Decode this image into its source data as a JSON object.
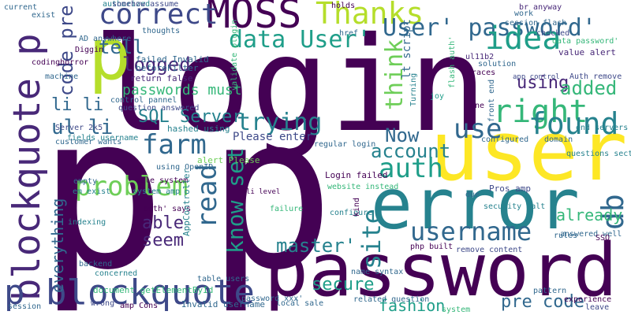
{
  "words": [
    "login",
    "p",
    "p",
    "password",
    "error",
    "user",
    "p",
    "blockquote p",
    "p blockquote",
    "MOSS",
    "Thanks",
    "correct",
    "data User'",
    "User' password'",
    "idea",
    "think",
    "right",
    "using",
    "added",
    "found",
    "farm",
    "use",
    "tell",
    "logged",
    "code pre",
    "li li",
    "ul li",
    "problem",
    "able",
    "seem",
    "read",
    "know set",
    "trying",
    "SQL Server",
    "auth",
    "db",
    "username",
    "already",
    "Now",
    "account",
    "site",
    "master'",
    "secure",
    "fashion",
    "pre code",
    "passwords must",
    "everything",
    "Please enter",
    "regular login",
    "Login failed",
    "Auth remove",
    "value alert",
    "app control",
    "return false",
    "failed Invalid",
    "beforeFilter",
    "control pannel",
    "question answered",
    "customer wants",
    "Server 2k5",
    "fields username",
    "hashed using",
    "using OpenID",
    "alert Please",
    "sale system",
    "system amp",
    "auth' says",
    "AppController",
    "li level",
    "failure",
    "website instead",
    "configure",
    "Pros amp",
    "security salt",
    "answered well",
    "remove content",
    "php built",
    "related question",
    "table users",
    "document getElementById",
    "Invalid username",
    "amp Cons",
    "local sale",
    "session",
    "wrong",
    "concerned",
    "backend",
    "indexing",
    "em exist",
    "empty",
    "machine",
    "codinghorror",
    "current",
    "exist",
    "authorized",
    "somehow assume",
    "br anyway",
    "href",
    "holds",
    "session flash",
    "checked",
    "data password'",
    "ul11b2",
    "traces",
    "solution",
    "work",
    "configured",
    "domain",
    "end servers",
    "questions section",
    "rules",
    "SSO",
    "leave",
    "experience",
    "pattern",
    "system",
    "due",
    "Turning",
    "joy",
    "one",
    "front end",
    "kind",
    "name syntax",
    "password xxx'",
    "validate plugin",
    "thoughts",
    "AD anywhere",
    "Diggin",
    "flash auth'",
    "lt script"
  ]
}
